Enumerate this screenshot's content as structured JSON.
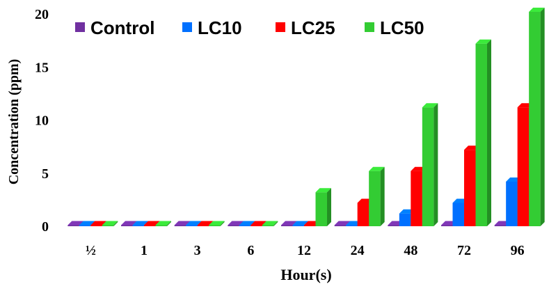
{
  "chart_data": {
    "type": "bar",
    "title": "",
    "xlabel": "Hour(s)",
    "ylabel": "Concentration (ppm)",
    "ylim": [
      0,
      20
    ],
    "yticks": [
      "0",
      "5",
      "10",
      "15",
      "20"
    ],
    "grid": false,
    "legend_position": "top-left",
    "categories": [
      "½",
      "1",
      "3",
      "6",
      "12",
      "24",
      "48",
      "72",
      "96"
    ],
    "series": [
      {
        "name": "Control",
        "color": "#7030a0",
        "values": [
          0,
          0,
          0,
          0,
          0,
          0,
          0,
          0,
          0
        ]
      },
      {
        "name": "LC10",
        "color": "#0070ff",
        "values": [
          0,
          0,
          0,
          0,
          0,
          0,
          1.2,
          2.2,
          4.2
        ]
      },
      {
        "name": "LC25",
        "color": "#ff0000",
        "values": [
          0,
          0,
          0,
          0,
          0,
          2.2,
          5.2,
          7.2,
          11.2
        ]
      },
      {
        "name": "LC50",
        "color": "#33cc33",
        "values": [
          0,
          0,
          0,
          0,
          3.2,
          5.2,
          11.2,
          17.2,
          20.2
        ]
      }
    ]
  }
}
